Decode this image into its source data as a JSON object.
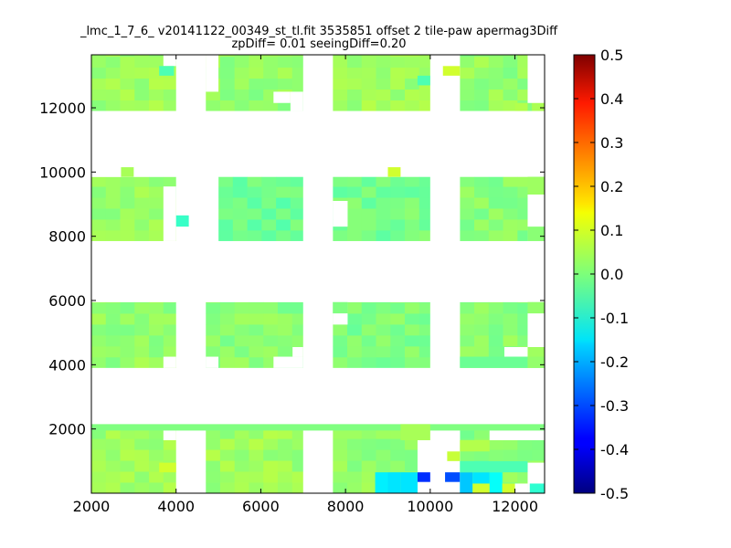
{
  "chart_data": {
    "type": "heatmap",
    "title": "_lmc_1_7_6_ v20141122_00349_st_tl.fit 3535851 offset 2 tile-paw apermag3Diff",
    "subtitle": "zpDiff= 0.01 seeingDiff=0.20",
    "xlabel": "",
    "ylabel": "",
    "xlim": [
      2000,
      12700
    ],
    "ylim": [
      0,
      13650
    ],
    "xticks": [
      "2000",
      "4000",
      "6000",
      "8000",
      "10000",
      "12000"
    ],
    "yticks": [
      "2000",
      "4000",
      "6000",
      "8000",
      "10000",
      "12000"
    ],
    "grid": false,
    "colormap": "jet",
    "colorbar": {
      "vmin": -0.5,
      "vmax": 0.5,
      "ticks": [
        "-0.5",
        "-0.4",
        "-0.3",
        "-0.2",
        "-0.1",
        "0.0",
        "0.1",
        "0.2",
        "0.3",
        "0.4",
        "0.5"
      ]
    },
    "pixel_size": 340,
    "default_value": 0.0,
    "regions": [
      {
        "name": "row1-col1",
        "x": [
          2000,
          4000
        ],
        "y": [
          11900,
          13650
        ],
        "value": 0.03
      },
      {
        "name": "row1-col2",
        "x": [
          4700,
          7000
        ],
        "y": [
          11900,
          13650
        ],
        "value": 0.02
      },
      {
        "name": "row1-col3",
        "x": [
          7700,
          10000
        ],
        "y": [
          11900,
          13650
        ],
        "value": 0.03
      },
      {
        "name": "row1-col4",
        "x": [
          10700,
          12700
        ],
        "y": [
          11900,
          13650
        ],
        "value": 0.02
      },
      {
        "name": "row2-col1",
        "x": [
          2000,
          4000
        ],
        "y": [
          7850,
          9850
        ],
        "value": 0.02
      },
      {
        "name": "row2-col2",
        "x": [
          5000,
          7000
        ],
        "y": [
          7850,
          9850
        ],
        "value": -0.02
      },
      {
        "name": "row2-col3",
        "x": [
          7700,
          10000
        ],
        "y": [
          7850,
          9850
        ],
        "value": -0.01
      },
      {
        "name": "row2-col4",
        "x": [
          10700,
          12700
        ],
        "y": [
          7850,
          9850
        ],
        "value": 0.01
      },
      {
        "name": "row3-col1",
        "x": [
          2000,
          4000
        ],
        "y": [
          3900,
          5950
        ],
        "value": 0.02
      },
      {
        "name": "row3-col2",
        "x": [
          4700,
          7000
        ],
        "y": [
          3900,
          5950
        ],
        "value": 0.01
      },
      {
        "name": "row3-col3",
        "x": [
          7700,
          10000
        ],
        "y": [
          3900,
          5950
        ],
        "value": 0.0
      },
      {
        "name": "row3-col4",
        "x": [
          10700,
          12700
        ],
        "y": [
          3900,
          5950
        ],
        "value": 0.01
      },
      {
        "name": "row4-col1",
        "x": [
          2000,
          4000
        ],
        "y": [
          0,
          2150
        ],
        "value": 0.03
      },
      {
        "name": "row4-col2",
        "x": [
          4700,
          7000
        ],
        "y": [
          0,
          2150
        ],
        "value": 0.03
      },
      {
        "name": "row4-col3",
        "x": [
          7700,
          10000
        ],
        "y": [
          0,
          2150
        ],
        "value": 0.02
      },
      {
        "name": "row4-col4",
        "x": [
          10700,
          12700
        ],
        "y": [
          0,
          2150
        ],
        "value": 0.01
      }
    ],
    "holes": [
      {
        "x": [
          2000,
          4700
        ],
        "y": [
          9850,
          11900
        ]
      },
      {
        "x": [
          4000,
          5000
        ],
        "y": [
          7850,
          9850
        ]
      },
      {
        "x": [
          3700,
          4000
        ],
        "y": [
          7850,
          9550
        ]
      },
      {
        "x": [
          2000,
          2700
        ],
        "y": [
          9850,
          10150
        ]
      },
      {
        "x": [
          4000,
          4700
        ],
        "y": [
          11900,
          13650
        ]
      },
      {
        "x": [
          4000,
          4700
        ],
        "y": [
          3900,
          5950
        ]
      },
      {
        "x": [
          4000,
          4700
        ],
        "y": [
          0,
          2150
        ]
      },
      {
        "x": [
          7000,
          7700
        ],
        "y": [
          0,
          13650
        ]
      },
      {
        "x": [
          10000,
          10700
        ],
        "y": [
          0,
          13650
        ]
      },
      {
        "x": [
          2000,
          12700
        ],
        "y": [
          9850,
          11900
        ]
      },
      {
        "x": [
          2000,
          12700
        ],
        "y": [
          5950,
          7850
        ]
      },
      {
        "x": [
          2000,
          12700
        ],
        "y": [
          2150,
          3900
        ]
      },
      {
        "x": [
          4700,
          5000
        ],
        "y": [
          7850,
          9850
        ]
      },
      {
        "x": [
          7700,
          8050
        ],
        "y": [
          8300,
          9100
        ]
      },
      {
        "x": [
          7700,
          8050
        ],
        "y": [
          5250,
          5600
        ]
      },
      {
        "x": [
          7700,
          8050
        ],
        "y": [
          5950,
          5600
        ]
      },
      {
        "x": [
          6700,
          7000
        ],
        "y": [
          11900,
          12500
        ]
      },
      {
        "x": [
          6300,
          6700
        ],
        "y": [
          12150,
          12500
        ]
      },
      {
        "x": [
          4700,
          5000
        ],
        "y": [
          12500,
          13650
        ]
      },
      {
        "x": [
          3700,
          4000
        ],
        "y": [
          13300,
          13650
        ]
      },
      {
        "x": [
          12300,
          12700
        ],
        "y": [
          12150,
          13650
        ]
      },
      {
        "x": [
          12300,
          12700
        ],
        "y": [
          7850,
          9300
        ]
      },
      {
        "x": [
          12300,
          12700
        ],
        "y": [
          4550,
          5600
        ]
      },
      {
        "x": [
          11750,
          12300
        ],
        "y": [
          4250,
          4550
        ]
      },
      {
        "x": [
          3700,
          4000
        ],
        "y": [
          4250,
          3900
        ]
      },
      {
        "x": [
          6300,
          7000
        ],
        "y": [
          3900,
          4250
        ]
      },
      {
        "x": [
          6750,
          7000
        ],
        "y": [
          4250,
          4550
        ]
      },
      {
        "x": [
          4700,
          5000
        ],
        "y": [
          4250,
          3900
        ]
      },
      {
        "x": [
          12300,
          12700
        ],
        "y": [
          0,
          950
        ]
      },
      {
        "x": [
          10000,
          10700
        ],
        "y": [
          0,
          2150
        ]
      },
      {
        "x": [
          9700,
          10700
        ],
        "y": [
          0,
          1650
        ]
      },
      {
        "x": [
          9700,
          10000
        ],
        "y": [
          1650,
          2150
        ]
      },
      {
        "x": [
          11400,
          12700
        ],
        "y": [
          1650,
          2150
        ]
      },
      {
        "x": [
          3700,
          4000
        ],
        "y": [
          1650,
          2150
        ]
      },
      {
        "x": [
          12000,
          12300
        ],
        "y": [
          0,
          300
        ]
      }
    ],
    "patches": [
      {
        "x": [
          2700,
          3000
        ],
        "y": [
          10150,
          9850
        ],
        "value": 0.04
      },
      {
        "x": [
          9000,
          9300
        ],
        "y": [
          10150,
          9850
        ],
        "value": 0.08
      },
      {
        "x": [
          4000,
          4300
        ],
        "y": [
          8300,
          8650
        ],
        "value": -0.07
      },
      {
        "x": [
          10300,
          10700
        ],
        "y": [
          13000,
          13300
        ],
        "value": 0.08
      },
      {
        "x": [
          9700,
          10000
        ],
        "y": [
          12700,
          13000
        ],
        "value": -0.05
      },
      {
        "x": [
          3600,
          3950
        ],
        "y": [
          13000,
          13300
        ],
        "value": -0.05
      },
      {
        "x": [
          2000,
          12700
        ],
        "y": [
          1950,
          2150
        ],
        "value": 0.0
      },
      {
        "x": [
          3600,
          4000
        ],
        "y": [
          650,
          950
        ],
        "value": 0.08
      },
      {
        "x": [
          8700,
          9000
        ],
        "y": [
          0,
          650
        ],
        "value": -0.14
      },
      {
        "x": [
          9000,
          9300
        ],
        "y": [
          0,
          650
        ],
        "value": -0.15
      },
      {
        "x": [
          9300,
          9700
        ],
        "y": [
          0,
          650
        ],
        "value": -0.15
      },
      {
        "x": [
          9700,
          10000
        ],
        "y": [
          350,
          650
        ],
        "value": -0.33
      },
      {
        "x": [
          10350,
          10700
        ],
        "y": [
          350,
          650
        ],
        "value": -0.3
      },
      {
        "x": [
          10700,
          11000
        ],
        "y": [
          0,
          650
        ],
        "value": -0.18
      },
      {
        "x": [
          11000,
          11400
        ],
        "y": [
          0,
          650
        ],
        "value": -0.15
      },
      {
        "x": [
          11400,
          11700
        ],
        "y": [
          0,
          650
        ],
        "value": -0.12
      },
      {
        "x": [
          11000,
          11400
        ],
        "y": [
          0,
          300
        ],
        "value": 0.08
      },
      {
        "x": [
          11700,
          12000
        ],
        "y": [
          0,
          300
        ],
        "value": 0.08
      },
      {
        "x": [
          12350,
          12700
        ],
        "y": [
          0,
          300
        ],
        "value": -0.08
      },
      {
        "x": [
          10700,
          12300
        ],
        "y": [
          650,
          1000
        ],
        "value": -0.05
      },
      {
        "x": [
          10400,
          10700
        ],
        "y": [
          1000,
          1300
        ],
        "value": 0.07
      },
      {
        "x": [
          10700,
          11400
        ],
        "y": [
          1300,
          1650
        ],
        "value": 0.05
      },
      {
        "x": [
          10700,
          12300
        ],
        "y": [
          3900,
          4250
        ],
        "value": -0.02
      },
      {
        "x": [
          12300,
          12700
        ],
        "y": [
          3900,
          4250
        ],
        "value": 0.02
      },
      {
        "x": [
          12300,
          12700
        ],
        "y": [
          5600,
          5950
        ],
        "value": 0.02
      },
      {
        "x": [
          12300,
          12700
        ],
        "y": [
          9300,
          9850
        ],
        "value": 0.03
      },
      {
        "x": [
          12300,
          12700
        ],
        "y": [
          7850,
          8300
        ],
        "value": 0.01
      },
      {
        "x": [
          12000,
          12300
        ],
        "y": [
          11900,
          12150
        ],
        "value": 0.05
      },
      {
        "x": [
          7700,
          8050
        ],
        "y": [
          5600,
          5950
        ],
        "value": 0.0
      },
      {
        "x": [
          9300,
          10000
        ],
        "y": [
          1650,
          2150
        ],
        "value": 0.04
      }
    ]
  }
}
